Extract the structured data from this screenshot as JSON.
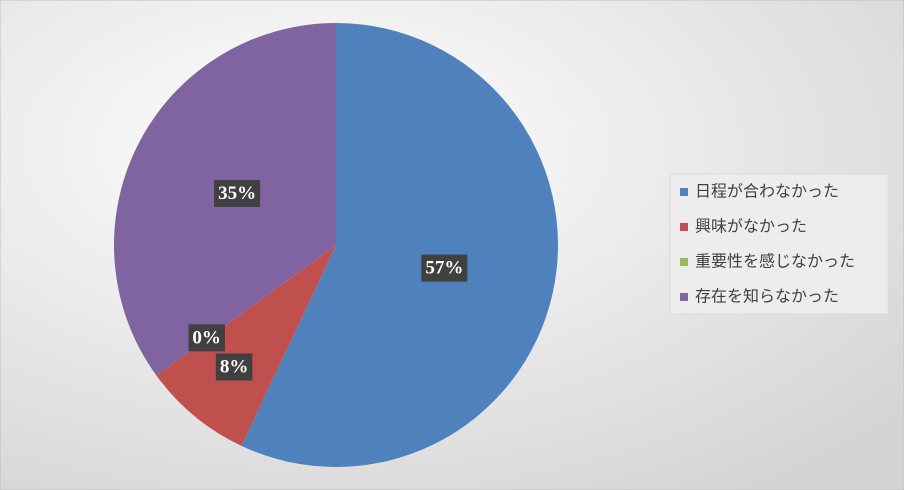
{
  "chart_data": {
    "type": "pie",
    "categories": [
      "日程が合わなかった",
      "興味がなかった",
      "重要性を感じなかった",
      "存在を知らなかった"
    ],
    "values": [
      57,
      8,
      0,
      35
    ],
    "value_labels": [
      "57%",
      "8%",
      "0%",
      "35%"
    ],
    "colors": [
      "#4f81bd",
      "#c0504d",
      "#9bbb59",
      "#8064a2"
    ],
    "legend": "right"
  }
}
